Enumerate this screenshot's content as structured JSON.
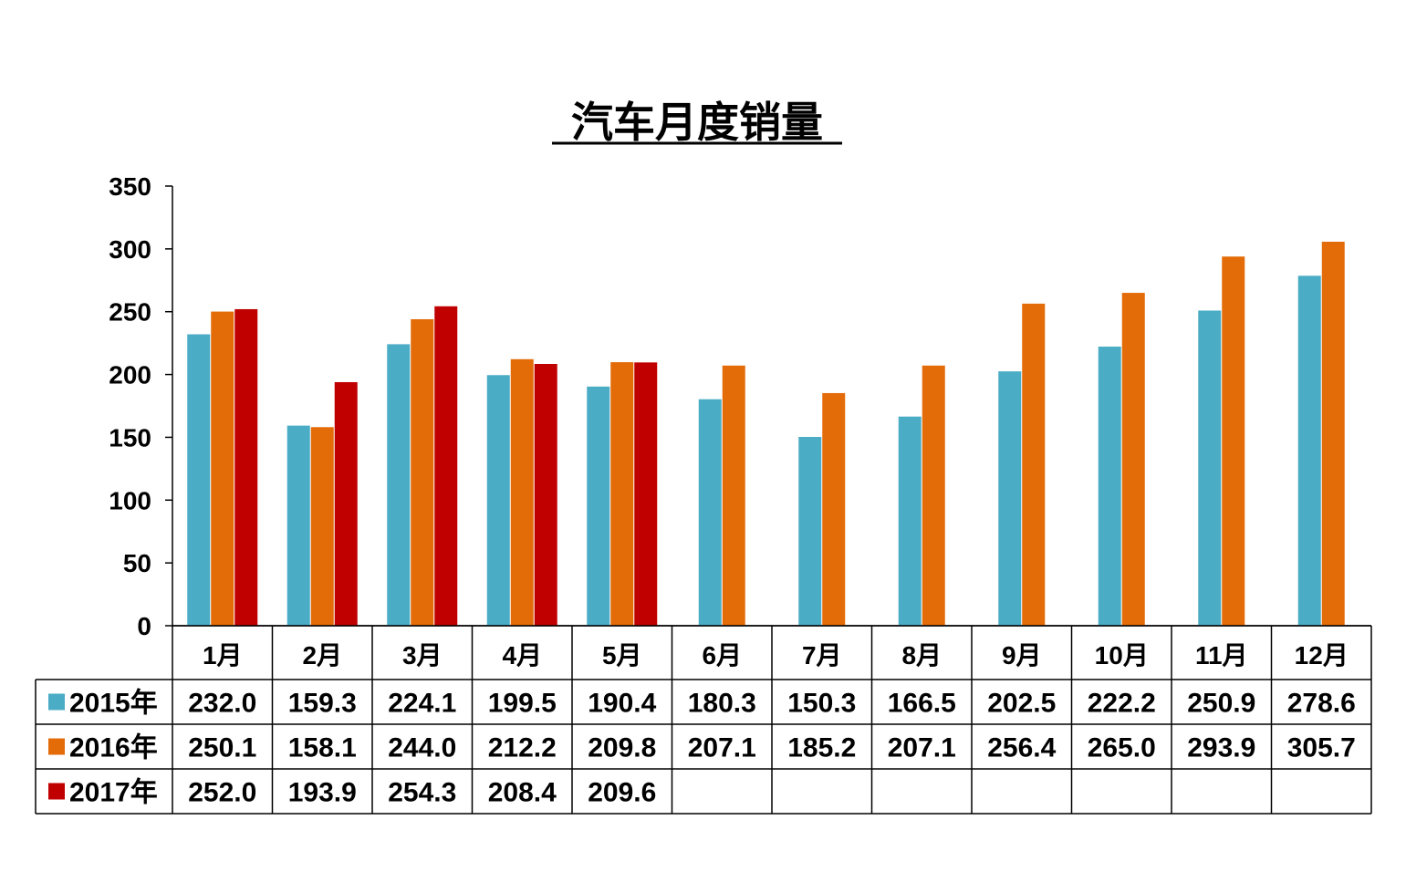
{
  "chart_data": {
    "type": "bar",
    "title": "汽车月度销量",
    "categories": [
      "1月",
      "2月",
      "3月",
      "4月",
      "5月",
      "6月",
      "7月",
      "8月",
      "9月",
      "10月",
      "11月",
      "12月"
    ],
    "series": [
      {
        "name": "2015年",
        "color": "#4bacc6",
        "values": [
          232.0,
          159.3,
          224.1,
          199.5,
          190.4,
          180.3,
          150.3,
          166.5,
          202.5,
          222.2,
          250.9,
          278.6
        ]
      },
      {
        "name": "2016年",
        "color": "#e36c09",
        "values": [
          250.1,
          158.1,
          244.0,
          212.2,
          209.8,
          207.1,
          185.2,
          207.1,
          256.4,
          265.0,
          293.9,
          305.7
        ]
      },
      {
        "name": "2017年",
        "color": "#c00000",
        "values": [
          252.0,
          193.9,
          254.3,
          208.4,
          209.6,
          null,
          null,
          null,
          null,
          null,
          null,
          null
        ]
      }
    ],
    "ylim": [
      0,
      350
    ],
    "yticks": [
      0,
      50,
      100,
      150,
      200,
      250,
      300,
      350
    ],
    "data_table": true,
    "grid": false,
    "legend": "in data table"
  }
}
